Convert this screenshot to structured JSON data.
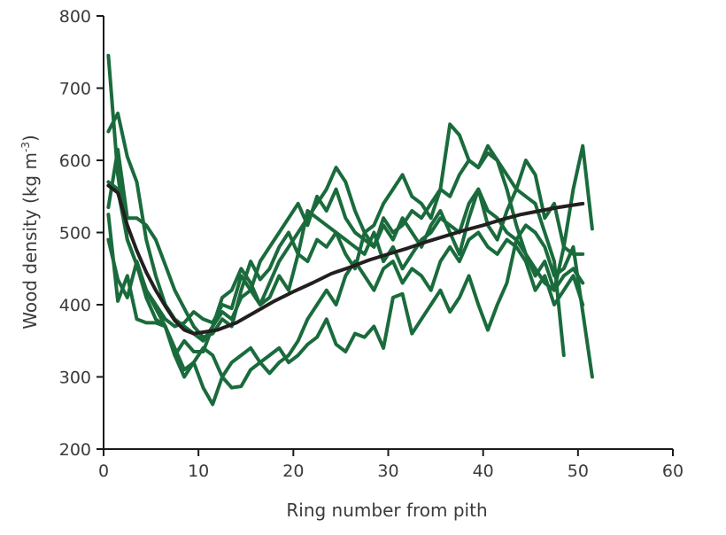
{
  "chart_data": {
    "type": "line",
    "title": "",
    "xlabel": "Ring number from pith",
    "ylabel_main": "Wood density (kg m",
    "ylabel_sup": "-3",
    "ylabel_close": ")",
    "xlim": [
      0,
      60
    ],
    "ylim": [
      200,
      800
    ],
    "xticks": [
      0,
      10,
      20,
      30,
      40,
      50,
      60
    ],
    "yticks": [
      200,
      300,
      400,
      500,
      600,
      700,
      800
    ],
    "grid": false,
    "legend": "none",
    "colors": {
      "series": "#1a6b3c",
      "trend": "#231f20",
      "axis": "#1a1a1a"
    },
    "series": [
      {
        "x": [
          0.5,
          1.5,
          2.5,
          3.5,
          4.5,
          5.5,
          6.5,
          7.5,
          8.5,
          9.5,
          10.5,
          11.5,
          12.5,
          13.5,
          14.5,
          15.5,
          16.5,
          17.5,
          18.5,
          19.5,
          20.5,
          21.5,
          22.5,
          23.5,
          24.5,
          25.5,
          26.5,
          27.5,
          28.5,
          29.5,
          30.5,
          31.5,
          32.5,
          33.5,
          34.5,
          35.5,
          36.5,
          37.5,
          38.5,
          39.5,
          40.5,
          41.5,
          42.5,
          43.5,
          44.5,
          45.5,
          46.5,
          47.5,
          48.5
        ],
        "values": [
          745,
          580,
          490,
          455,
          420,
          400,
          380,
          370,
          375,
          390,
          380,
          375,
          400,
          395,
          440,
          420,
          460,
          480,
          500,
          520,
          540,
          510,
          550,
          530,
          560,
          520,
          500,
          490,
          480,
          520,
          500,
          510,
          530,
          520,
          540,
          560,
          550,
          580,
          600,
          590,
          620,
          600,
          580,
          560,
          550,
          540,
          500,
          460,
          330
        ]
      },
      {
        "x": [
          0.5,
          1.5,
          2.5,
          3.5,
          4.5,
          5.5,
          6.5,
          7.5,
          8.5,
          9.5,
          10.5,
          11.5,
          12.5,
          13.5,
          14.5,
          15.5,
          16.5,
          17.5,
          18.5,
          19.5,
          20.5,
          21.5,
          22.5,
          23.5,
          24.5,
          25.5,
          26.5,
          27.5,
          28.5,
          29.5,
          30.5,
          31.5,
          32.5,
          33.5,
          34.5,
          35.5,
          36.5,
          37.5,
          38.5,
          39.5,
          40.5,
          41.5,
          42.5,
          43.5,
          44.5,
          45.5,
          46.5,
          47.5,
          48.5,
          49.5,
          50.5
        ],
        "values": [
          640,
          665,
          605,
          570,
          490,
          440,
          400,
          380,
          370,
          360,
          350,
          370,
          390,
          380,
          410,
          420,
          400,
          430,
          460,
          480,
          500,
          520,
          540,
          560,
          590,
          570,
          530,
          500,
          510,
          540,
          560,
          580,
          550,
          540,
          520,
          560,
          650,
          635,
          600,
          590,
          610,
          600,
          560,
          510,
          470,
          440,
          460,
          420,
          480,
          470,
          470
        ]
      },
      {
        "x": [
          0.5,
          1.5,
          2.5,
          3.5,
          4.5,
          5.5,
          6.5,
          7.5,
          8.5,
          9.5,
          10.5,
          11.5,
          12.5,
          13.5,
          14.5,
          15.5,
          16.5,
          17.5,
          18.5,
          19.5,
          20.5,
          21.5,
          22.5,
          23.5,
          24.5,
          25.5,
          26.5,
          27.5,
          28.5,
          29.5,
          30.5,
          31.5,
          32.5,
          33.5,
          34.5,
          35.5,
          36.5,
          37.5,
          38.5,
          39.5,
          40.5,
          41.5,
          42.5,
          43.5,
          44.5,
          45.5,
          46.5,
          47.5,
          48.5,
          49.5,
          50.5
        ],
        "values": [
          535,
          615,
          520,
          520,
          510,
          490,
          455,
          420,
          395,
          370,
          355,
          360,
          380,
          370,
          420,
          460,
          435,
          450,
          480,
          500,
          470,
          530,
          520,
          510,
          500,
          490,
          480,
          470,
          500,
          460,
          480,
          450,
          470,
          490,
          500,
          520,
          510,
          500,
          540,
          560,
          530,
          520,
          500,
          490,
          470,
          450,
          430,
          420,
          440,
          450,
          430
        ]
      },
      {
        "x": [
          0.5,
          1.5,
          2.5,
          3.5,
          4.5,
          5.5,
          6.5,
          7.5,
          8.5,
          9.5,
          10.5,
          11.5,
          12.5,
          13.5,
          14.5,
          15.5,
          16.5,
          17.5,
          18.5,
          19.5,
          20.5,
          21.5,
          22.5,
          23.5,
          24.5,
          25.5,
          26.5,
          27.5,
          28.5,
          29.5,
          30.5,
          31.5,
          32.5,
          33.5,
          34.5,
          35.5,
          36.5,
          37.5,
          38.5,
          39.5,
          40.5,
          41.5,
          42.5,
          43.5,
          44.5,
          45.5,
          46.5,
          47.5,
          48.5,
          49.5,
          50.5,
          51.5
        ],
        "values": [
          490,
          435,
          410,
          460,
          420,
          395,
          370,
          330,
          350,
          335,
          335,
          370,
          410,
          420,
          450,
          430,
          400,
          410,
          440,
          420,
          470,
          460,
          490,
          480,
          500,
          470,
          450,
          500,
          480,
          510,
          490,
          520,
          500,
          480,
          510,
          530,
          500,
          470,
          520,
          560,
          510,
          490,
          530,
          560,
          600,
          580,
          520,
          540,
          480,
          560,
          620,
          505
        ]
      },
      {
        "x": [
          0.5,
          1.5,
          2.5,
          3.5,
          4.5,
          5.5,
          6.5,
          7.5,
          8.5,
          9.5,
          10.5,
          11.5,
          12.5,
          13.5,
          14.5,
          15.5,
          16.5,
          17.5,
          18.5,
          19.5,
          20.5,
          21.5,
          22.5,
          23.5,
          24.5,
          25.5,
          26.5,
          27.5,
          28.5,
          29.5,
          30.5,
          31.5,
          32.5,
          33.5,
          34.5,
          35.5,
          36.5,
          37.5,
          38.5,
          39.5,
          40.5,
          41.5,
          42.5,
          43.5,
          44.5,
          45.5,
          46.5,
          47.5,
          48.5,
          49.5,
          50.5,
          51.5
        ],
        "values": [
          525,
          405,
          440,
          380,
          375,
          375,
          370,
          340,
          310,
          320,
          285,
          262,
          300,
          285,
          287,
          310,
          320,
          330,
          340,
          320,
          330,
          345,
          355,
          380,
          345,
          335,
          360,
          355,
          370,
          340,
          410,
          415,
          360,
          380,
          400,
          420,
          390,
          410,
          440,
          400,
          365,
          400,
          430,
          490,
          510,
          500,
          480,
          440,
          450,
          480,
          390,
          300
        ]
      },
      {
        "x": [
          0.5,
          1.5,
          2.5,
          3.5,
          4.5,
          5.5,
          6.5,
          7.5,
          8.5,
          9.5,
          10.5,
          11.5,
          12.5,
          13.5,
          14.5,
          15.5,
          16.5,
          17.5,
          18.5,
          19.5,
          20.5,
          21.5,
          22.5,
          23.5,
          24.5,
          25.5,
          26.5,
          27.5,
          28.5,
          29.5,
          30.5,
          31.5,
          32.5,
          33.5,
          34.5,
          35.5,
          36.5,
          37.5,
          38.5,
          39.5,
          40.5,
          41.5,
          42.5,
          43.5,
          44.5,
          45.5,
          46.5,
          47.5,
          48.5,
          49.5,
          50.5
        ],
        "values": [
          570,
          560,
          490,
          455,
          410,
          380,
          370,
          330,
          300,
          320,
          340,
          330,
          300,
          320,
          330,
          340,
          320,
          305,
          320,
          330,
          350,
          380,
          400,
          420,
          400,
          440,
          460,
          440,
          420,
          450,
          460,
          430,
          450,
          440,
          420,
          460,
          480,
          460,
          490,
          500,
          480,
          470,
          490,
          480,
          460,
          420,
          440,
          400,
          420,
          440,
          400
        ]
      }
    ],
    "trend": {
      "x": [
        0.5,
        1.5,
        2.5,
        3.5,
        4.5,
        5.5,
        6.5,
        7.5,
        8.5,
        9.5,
        10.5,
        12,
        14,
        16,
        18,
        20,
        22,
        24,
        26,
        28,
        30,
        32,
        34,
        36,
        38,
        40,
        42,
        44,
        46,
        48,
        50.5
      ],
      "values": [
        565,
        555,
        510,
        475,
        445,
        420,
        398,
        378,
        365,
        360,
        362,
        365,
        375,
        390,
        405,
        418,
        430,
        443,
        452,
        462,
        470,
        478,
        487,
        495,
        503,
        510,
        518,
        525,
        530,
        535,
        540
      ]
    }
  }
}
